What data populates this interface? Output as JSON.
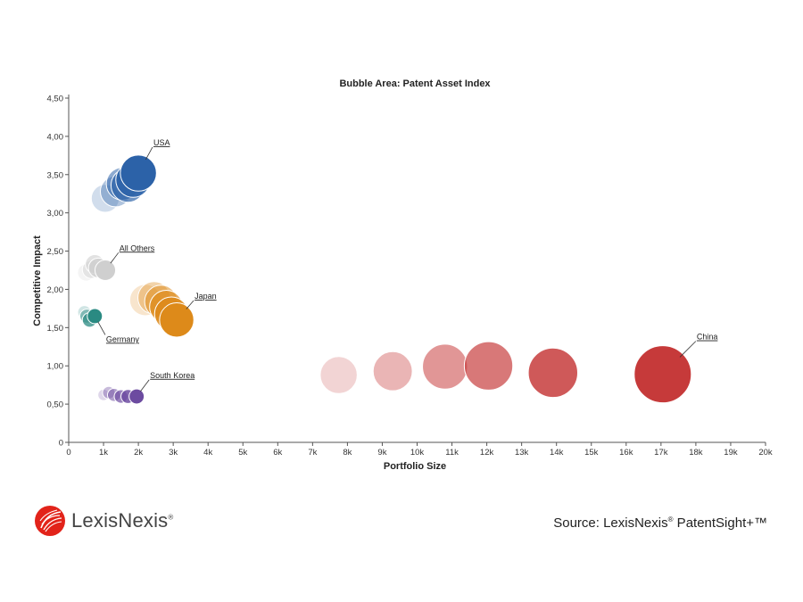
{
  "chart_data": {
    "type": "scatter",
    "title": "Bubble Area:  Patent Asset Index",
    "xlabel": "Portfolio Size",
    "ylabel": "Competitive Impact",
    "xlim": [
      0,
      20000
    ],
    "ylim": [
      0,
      4.5
    ],
    "x_ticks": [
      0,
      1000,
      2000,
      3000,
      4000,
      5000,
      6000,
      7000,
      8000,
      9000,
      10000,
      11000,
      12000,
      13000,
      14000,
      15000,
      16000,
      17000,
      18000,
      19000,
      20000
    ],
    "x_tick_labels": [
      "0",
      "1k",
      "2k",
      "3k",
      "4k",
      "5k",
      "6k",
      "7k",
      "8k",
      "9k",
      "10k",
      "11k",
      "12k",
      "13k",
      "14k",
      "15k",
      "16k",
      "17k",
      "18k",
      "19k",
      "20k"
    ],
    "y_ticks": [
      0,
      0.5,
      1.0,
      1.5,
      2.0,
      2.5,
      3.0,
      3.5,
      4.0,
      4.5
    ],
    "y_tick_labels": [
      "0",
      "0,50",
      "1,00",
      "1,50",
      "2,00",
      "2,50",
      "3,00",
      "3,50",
      "4,00",
      "4,50"
    ],
    "series": [
      {
        "name": "USA",
        "color": "#2c62a8",
        "points": [
          {
            "x": 1050,
            "y": 3.19
          },
          {
            "x": 1350,
            "y": 3.28
          },
          {
            "x": 1550,
            "y": 3.38
          },
          {
            "x": 1700,
            "y": 3.36
          },
          {
            "x": 1850,
            "y": 3.43
          },
          {
            "x": 2000,
            "y": 3.52
          }
        ],
        "sizes": [
          2400,
          2900,
          3300,
          3500,
          3700,
          4000
        ]
      },
      {
        "name": "All Others",
        "color": "#cfcfcf",
        "points": [
          {
            "x": 500,
            "y": 2.22
          },
          {
            "x": 650,
            "y": 2.26
          },
          {
            "x": 750,
            "y": 2.33
          },
          {
            "x": 850,
            "y": 2.28
          },
          {
            "x": 1050,
            "y": 2.25
          }
        ],
        "sizes": [
          900,
          1000,
          1100,
          1200,
          1300
        ]
      },
      {
        "name": "Japan",
        "color": "#dd8a1a",
        "points": [
          {
            "x": 2200,
            "y": 1.86
          },
          {
            "x": 2450,
            "y": 1.89
          },
          {
            "x": 2650,
            "y": 1.84
          },
          {
            "x": 2800,
            "y": 1.77
          },
          {
            "x": 2950,
            "y": 1.68
          },
          {
            "x": 3100,
            "y": 1.6
          }
        ],
        "sizes": [
          3000,
          3200,
          3300,
          3400,
          3500,
          3600
        ]
      },
      {
        "name": "Germany",
        "color": "#2a8a82",
        "points": [
          {
            "x": 450,
            "y": 1.7
          },
          {
            "x": 520,
            "y": 1.65
          },
          {
            "x": 600,
            "y": 1.6
          },
          {
            "x": 750,
            "y": 1.65
          }
        ],
        "sizes": [
          550,
          600,
          650,
          700
        ]
      },
      {
        "name": "South Korea",
        "color": "#6c4ba0",
        "points": [
          {
            "x": 1000,
            "y": 0.62
          },
          {
            "x": 1150,
            "y": 0.65
          },
          {
            "x": 1300,
            "y": 0.62
          },
          {
            "x": 1500,
            "y": 0.6
          },
          {
            "x": 1700,
            "y": 0.6
          },
          {
            "x": 1950,
            "y": 0.6
          }
        ],
        "sizes": [
          400,
          480,
          520,
          560,
          600,
          700
        ]
      },
      {
        "name": "China",
        "color": "#c63a3a",
        "points": [
          {
            "x": 7750,
            "y": 0.88
          },
          {
            "x": 9300,
            "y": 0.93
          },
          {
            "x": 10800,
            "y": 0.99
          },
          {
            "x": 12050,
            "y": 1.0
          },
          {
            "x": 13900,
            "y": 0.91
          },
          {
            "x": 17050,
            "y": 0.89
          }
        ],
        "sizes": [
          4200,
          4700,
          6200,
          7200,
          7500,
          10000
        ]
      }
    ],
    "grid": false,
    "legend": "none"
  },
  "footer": {
    "logo_text": "LexisNexis",
    "logo_mark": "®",
    "source_prefix": "Source: LexisNexis",
    "source_mark": "®",
    "source_suffix": " PatentSight+™"
  }
}
